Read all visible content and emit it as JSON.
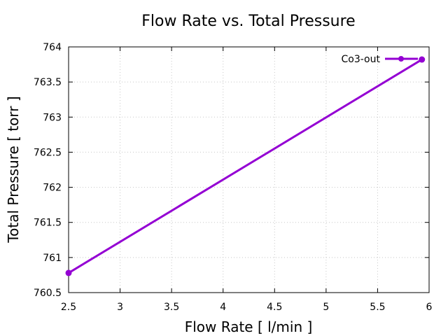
{
  "chart_data": {
    "type": "line",
    "title": "Flow Rate vs. Total Pressure",
    "xlabel": "Flow Rate [ l/min ]",
    "ylabel": "Total Pressure [ torr ]",
    "xlim": [
      2.5,
      6
    ],
    "ylim": [
      760.5,
      764
    ],
    "xticks": [
      "2.5",
      "3",
      "3.5",
      "4",
      "4.5",
      "5",
      "5.5",
      "6"
    ],
    "yticks": [
      "760.5",
      "761",
      "761.5",
      "762",
      "762.5",
      "763",
      "763.5",
      "764"
    ],
    "grid": true,
    "legend_position": "top-right",
    "series": [
      {
        "name": "Co3-out",
        "color": "#9400d3",
        "x": [
          2.5,
          5.93
        ],
        "y": [
          760.78,
          763.82
        ]
      }
    ]
  }
}
